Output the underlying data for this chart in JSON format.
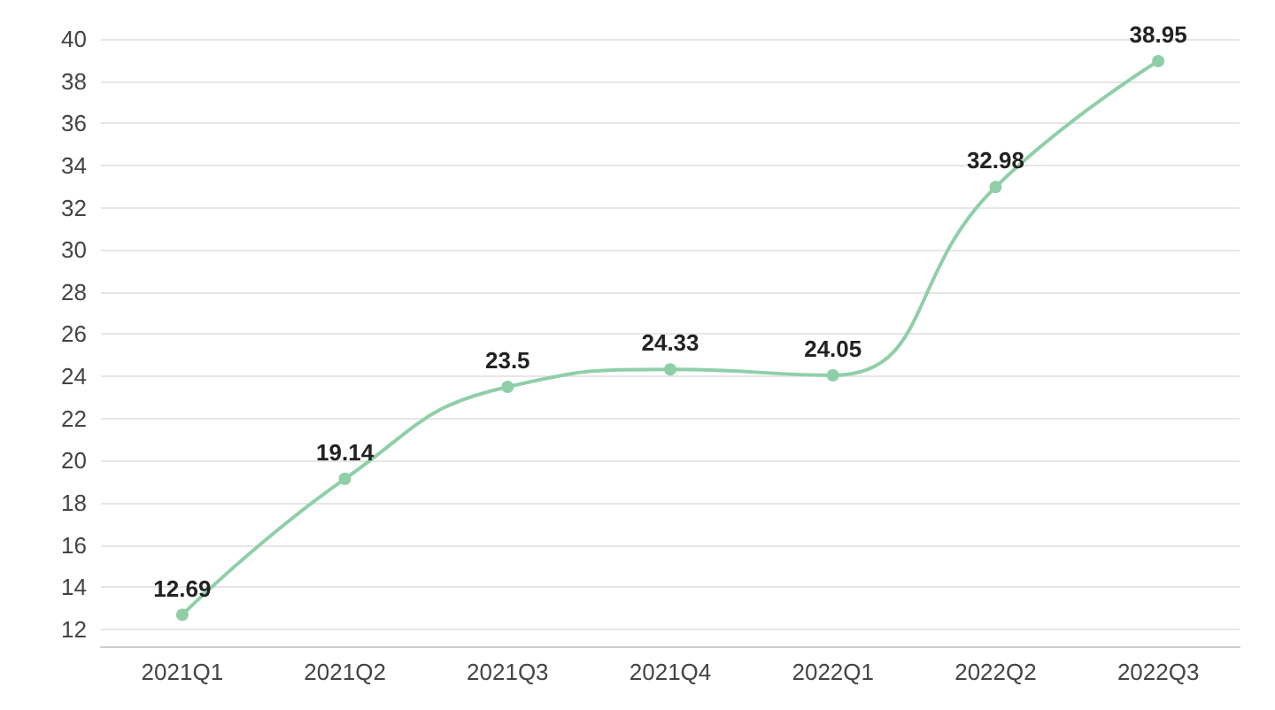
{
  "chart_data": {
    "type": "line",
    "categories": [
      "2021Q1",
      "2021Q2",
      "2021Q3",
      "2021Q4",
      "2022Q1",
      "2022Q2",
      "2022Q3"
    ],
    "series": [
      {
        "color": "#8fcfa8",
        "values": [
          12.69,
          19.14,
          23.5,
          24.33,
          24.05,
          32.98,
          38.95
        ]
      }
    ],
    "ylim": [
      11.2,
      40
    ],
    "yticks": [
      12,
      14,
      16,
      18,
      20,
      22,
      24,
      26,
      28,
      30,
      32,
      34,
      36,
      38,
      40
    ],
    "grid": "y",
    "marker": "circle",
    "data_labels": true
  }
}
